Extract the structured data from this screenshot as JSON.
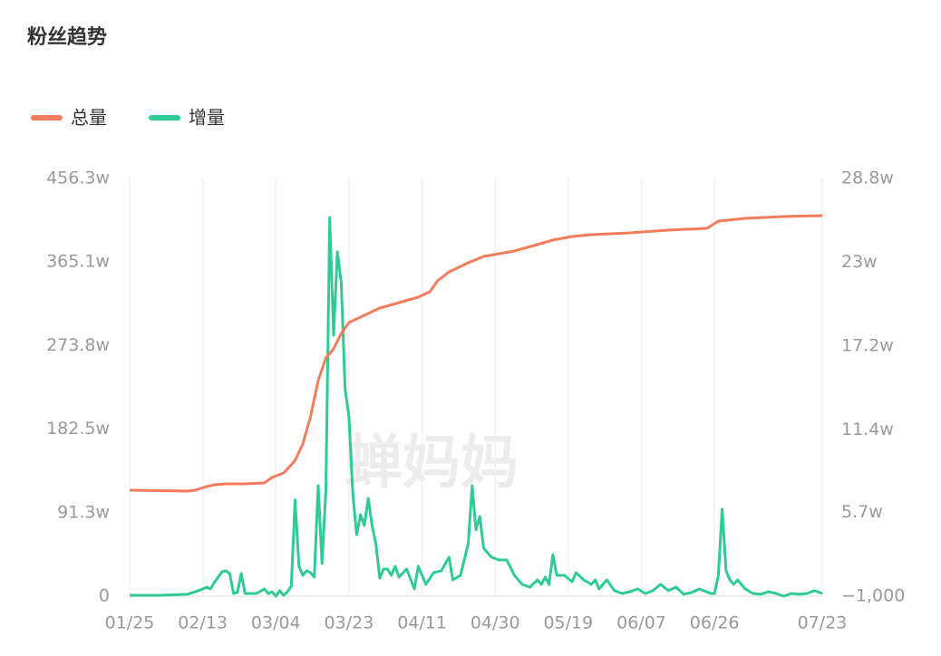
{
  "chart_data": {
    "type": "line",
    "title": "粉丝趋势",
    "watermark": "蝉妈妈",
    "xlim": [
      0,
      180
    ],
    "xticks": [
      {
        "value": 0,
        "label": "01/25"
      },
      {
        "value": 19,
        "label": "02/13"
      },
      {
        "value": 38,
        "label": "03/04"
      },
      {
        "value": 57,
        "label": "03/23"
      },
      {
        "value": 76,
        "label": "04/11"
      },
      {
        "value": 95,
        "label": "04/30"
      },
      {
        "value": 114,
        "label": "05/19"
      },
      {
        "value": 133,
        "label": "06/07"
      },
      {
        "value": 152,
        "label": "06/26"
      },
      {
        "value": 180,
        "label": "07/23"
      }
    ],
    "ylim": [
      0,
      4563000
    ],
    "yticks": [
      0,
      {
        "value": 913000,
        "label": "91.3w"
      },
      {
        "value": 1825000,
        "label": "182.5w"
      },
      {
        "value": 2738000,
        "label": "273.8w"
      },
      {
        "value": 3651000,
        "label": "365.1w"
      },
      {
        "value": 4563000,
        "label": "456.3w"
      }
    ],
    "y2lim": [
      -1000,
      288000
    ],
    "y2ticks": [
      {
        "value": -1000,
        "label": "−1,000"
      },
      {
        "value": 57000,
        "label": "5.7w"
      },
      {
        "value": 114000,
        "label": "11.4w"
      },
      {
        "value": 172000,
        "label": "17.2w"
      },
      {
        "value": 230000,
        "label": "23w"
      },
      {
        "value": 288000,
        "label": "28.8w"
      }
    ],
    "grid": true,
    "legend": "top-left",
    "series": [
      {
        "name": "总量",
        "color": "#f57c5b",
        "x": [
          0,
          15,
          17,
          20,
          22,
          25,
          30,
          35,
          37,
          40,
          42,
          43,
          45,
          47,
          49,
          51,
          53,
          55,
          57,
          60,
          65,
          70,
          75,
          78,
          80,
          83,
          88,
          92,
          100,
          105,
          110,
          115,
          120,
          130,
          140,
          150,
          153,
          160,
          170,
          180
        ],
        "values": [
          1158000,
          1148000,
          1158000,
          1198000,
          1217000,
          1227000,
          1227000,
          1237000,
          1297000,
          1346000,
          1435000,
          1485000,
          1663000,
          1960000,
          2356000,
          2603000,
          2702000,
          2870000,
          2989000,
          3049000,
          3148000,
          3207000,
          3266000,
          3326000,
          3445000,
          3543000,
          3642000,
          3712000,
          3771000,
          3831000,
          3890000,
          3930000,
          3949000,
          3969000,
          3999000,
          4019000,
          4098000,
          4127000,
          4147000,
          4157000
        ]
      },
      {
        "name": "增量",
        "color": "#2ecc94",
        "axis": "y2",
        "x": [
          0,
          8,
          15,
          17,
          19,
          20,
          21,
          22,
          24,
          25,
          26,
          27,
          28,
          29,
          30,
          33,
          35,
          36,
          37,
          38,
          39,
          40,
          41,
          42,
          43,
          44,
          45,
          46,
          47,
          48,
          49,
          50,
          51,
          52,
          53,
          54,
          55,
          56,
          57,
          58,
          59,
          60,
          61,
          62,
          63,
          64,
          65,
          66,
          67,
          68,
          69,
          70,
          72,
          74,
          75,
          77,
          79,
          81,
          83,
          84,
          86,
          88,
          89,
          90,
          91,
          92,
          94,
          96,
          98,
          100,
          102,
          104,
          106,
          107,
          108,
          109,
          110,
          111,
          113,
          115,
          116,
          118,
          120,
          121,
          122,
          124,
          126,
          128,
          130,
          132,
          134,
          136,
          138,
          140,
          142,
          144,
          146,
          148,
          150,
          151,
          152,
          153,
          154,
          155,
          156,
          157,
          158,
          160,
          162,
          164,
          166,
          168,
          170,
          172,
          174,
          176,
          178,
          180
        ],
        "values": [
          -400,
          -400,
          300,
          2100,
          4000,
          5300,
          4000,
          8400,
          15900,
          16600,
          14700,
          900,
          1500,
          14700,
          900,
          900,
          4000,
          900,
          2100,
          -1000,
          2800,
          -400,
          2100,
          5900,
          65500,
          19700,
          13400,
          16600,
          15300,
          12200,
          75500,
          21600,
          73000,
          261100,
          179600,
          237300,
          215900,
          142000,
          123100,
          69900,
          41600,
          55400,
          47900,
          66700,
          47900,
          35400,
          11500,
          17800,
          17800,
          13400,
          19700,
          12200,
          17800,
          4000,
          19700,
          7200,
          15300,
          16600,
          26000,
          10300,
          13400,
          35400,
          75500,
          44800,
          54200,
          32200,
          26000,
          24100,
          24100,
          13400,
          7200,
          5300,
          10300,
          7200,
          12200,
          7200,
          27800,
          13400,
          13400,
          9000,
          15300,
          10300,
          7200,
          10300,
          4000,
          10300,
          2800,
          900,
          2100,
          4000,
          900,
          2800,
          7200,
          2800,
          5300,
          300,
          1500,
          4000,
          2100,
          900,
          900,
          13400,
          59200,
          16600,
          10300,
          7200,
          10300,
          4000,
          900,
          300,
          2100,
          900,
          -1000,
          900,
          300,
          900,
          2800,
          900
        ]
      }
    ]
  }
}
